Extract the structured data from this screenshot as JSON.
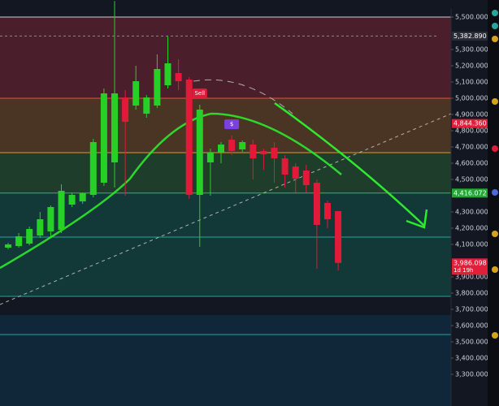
{
  "chart_data": {
    "type": "candlestick",
    "ylim": [
      3105,
      5605
    ],
    "yticks": [
      {
        "value": 5500,
        "label": "5,500.000"
      },
      {
        "value": 5300,
        "label": "5,300.000"
      },
      {
        "value": 5200,
        "label": "5,200.000"
      },
      {
        "value": 5100,
        "label": "5,100.000"
      },
      {
        "value": 5000,
        "label": "5,000.000"
      },
      {
        "value": 4900,
        "label": "4,900.000"
      },
      {
        "value": 4800,
        "label": "4,800.000"
      },
      {
        "value": 4700,
        "label": "4,700.000"
      },
      {
        "value": 4600,
        "label": "4,600.000"
      },
      {
        "value": 4500,
        "label": "4,500.000"
      },
      {
        "value": 4300,
        "label": "4,300.000"
      },
      {
        "value": 4200,
        "label": "4,200.000"
      },
      {
        "value": 4100,
        "label": "4,100.000"
      },
      {
        "value": 3900,
        "label": "3,900.000"
      },
      {
        "value": 3800,
        "label": "3,800.000"
      },
      {
        "value": 3700,
        "label": "3,700.000"
      },
      {
        "value": 3600,
        "label": "3,600.000"
      },
      {
        "value": 3500,
        "label": "3,500.000"
      },
      {
        "value": 3400,
        "label": "3,400.000"
      },
      {
        "value": 3300,
        "label": "3,300.000"
      }
    ],
    "high": [
      4110,
      4170,
      4210,
      4300,
      4340,
      4470,
      4420,
      4420,
      4750,
      5060,
      5598.75,
      5050,
      5200,
      5020,
      5270,
      5385,
      5240,
      5130,
      4960,
      4690,
      4730,
      4770,
      4740,
      4745,
      4690,
      4730,
      4650,
      4600,
      4590,
      4500,
      4370,
      4305
    ],
    "low": [
      4070,
      4080,
      4095,
      4140,
      4150,
      4170,
      4330,
      4350,
      4390,
      4460,
      4450,
      4400,
      4930,
      4880,
      4940,
      5060,
      5050,
      4380,
      4085,
      4400,
      4600,
      4650,
      4670,
      4500,
      4560,
      4480,
      4450,
      4420,
      4420,
      3950,
      4200,
      3940
    ],
    "price_labels": [
      {
        "value": 5382.89,
        "label": "5,382.890",
        "color": "#2a2e39"
      },
      {
        "value": 4844.36,
        "label": "4,844.360",
        "color": "#e0203a"
      },
      {
        "value": 4416.072,
        "label": "4,416.072",
        "color": "#22a833"
      },
      {
        "value": 3986.098,
        "label": "3,986.098",
        "color": "#e0203a",
        "countdown": "1d 19h"
      }
    ],
    "levels": [
      {
        "value": 5500,
        "color": "#cfcfcf",
        "fill": "#4a1e2b"
      },
      {
        "value": 5000,
        "color": "#e0523f",
        "fill": "#4a3424"
      },
      {
        "value": 4665,
        "color": "#e0962f",
        "fill": "#1f3d2b"
      },
      {
        "value": 4416.072,
        "color": "#4caf50",
        "fill": "#123838"
      },
      {
        "value": 4145,
        "color": "#26a69a",
        "fill": "#123838"
      },
      {
        "value": 3780,
        "color": "#26a69a",
        "fill": "#131722"
      }
    ],
    "up_color": "#27d027",
    "down_color": "#e3193a",
    "open": [
      4080,
      4090,
      4105,
      4155,
      4180,
      4190,
      4345,
      4365,
      4405,
      4480,
      4605,
      5005,
      4955,
      4905,
      4955,
      5080,
      5155,
      5115,
      4405,
      4605,
      4665,
      4745,
      4685,
      4715,
      4675,
      4695,
      4630,
      4580,
      4555,
      4480,
      4355,
      4305
    ],
    "close": [
      4100,
      4150,
      4195,
      4255,
      4330,
      4430,
      4405,
      4415,
      4730,
      5030,
      5030,
      4855,
      5105,
      5005,
      5180,
      5215,
      5105,
      4405,
      4930,
      4665,
      4715,
      4675,
      4730,
      4630,
      4655,
      4630,
      4530,
      4505,
      4465,
      4220,
      4255,
      3986.098
    ],
    "markers": [
      {
        "index": 18,
        "text": "Sell",
        "color": "#e3193a"
      },
      {
        "index": 21,
        "text": "$",
        "color": "#7b3fe4"
      }
    ]
  }
}
